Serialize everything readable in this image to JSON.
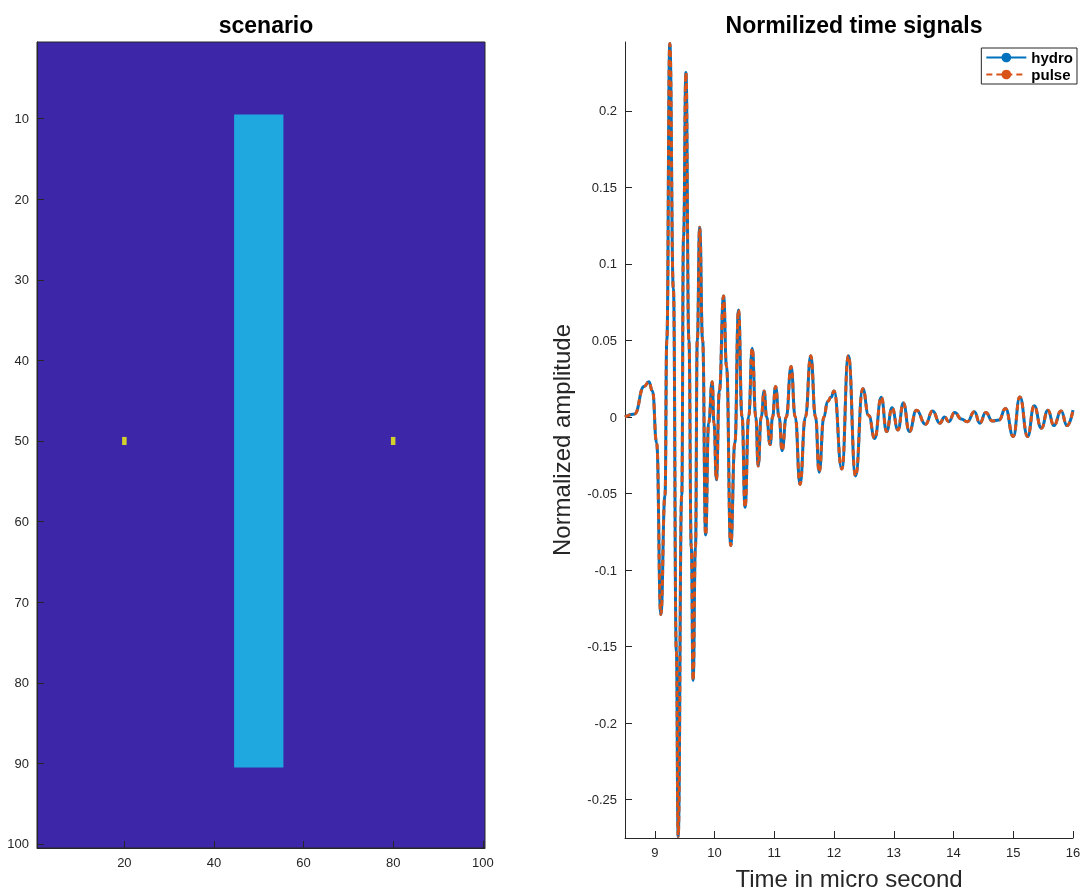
{
  "chart_data": [
    {
      "type": "bar",
      "title": "scenario",
      "xlim": [
        0.5,
        100.5
      ],
      "ylim": [
        100.5,
        0.5
      ],
      "xticks": [
        20,
        40,
        60,
        80,
        100
      ],
      "yticks": [
        10,
        20,
        30,
        40,
        50,
        60,
        70,
        80,
        90,
        100
      ],
      "marker": "square",
      "grid": false,
      "series": [
        {
          "type": "bar",
          "color": "#1fa8df",
          "x": [
            50
          ],
          "base": [
            9.5
          ],
          "values": [
            81
          ]
        },
        {
          "type": "scatter",
          "color": "#f9fb0e",
          "x": [
            20,
            80
          ],
          "values": [
            50,
            50
          ]
        }
      ]
    },
    {
      "type": "line",
      "title": "Normilized time signals",
      "xlabel": "Time in micro second",
      "ylabel": "Normalized amplitude",
      "xlim": [
        8.5,
        16
      ],
      "ylim": [
        -0.275,
        0.245
      ],
      "xticks": [
        9,
        10,
        11,
        12,
        13,
        14,
        15,
        16
      ],
      "yticks": [
        -0.25,
        -0.2,
        -0.15,
        -0.1,
        -0.05,
        0,
        0.05,
        0.1,
        0.15,
        0.2
      ],
      "grid": false,
      "legend": "top right",
      "marker": "none",
      "x": [
        8.5,
        8.66,
        8.82,
        8.9,
        8.96,
        9.03,
        9.1,
        9.17,
        9.2,
        9.25,
        9.31,
        9.36,
        9.39,
        9.45,
        9.48,
        9.52,
        9.57,
        9.61,
        9.64,
        9.68,
        9.71,
        9.75,
        9.8,
        9.85,
        9.9,
        9.96,
        9.99,
        10.03,
        10.08,
        10.15,
        10.2,
        10.27,
        10.34,
        10.4,
        10.46,
        10.51,
        10.57,
        10.63,
        10.69,
        10.73,
        10.78,
        10.83,
        10.87,
        10.93,
        10.97,
        11.02,
        11.08,
        11.13,
        11.2,
        11.28,
        11.35,
        11.43,
        11.52,
        11.61,
        11.69,
        11.75,
        11.83,
        11.89,
        11.95,
        12.0,
        12.13,
        12.24,
        12.36,
        12.48,
        12.58,
        12.68,
        12.79,
        12.88,
        12.97,
        13.07,
        13.16,
        13.26,
        13.38,
        13.53,
        13.65,
        13.77,
        13.85,
        13.92,
        14.02,
        14.13,
        14.23,
        14.35,
        14.44,
        14.54,
        14.65,
        14.76,
        14.87,
        15.0,
        15.11,
        15.24,
        15.35,
        15.47,
        15.58,
        15.68,
        15.8,
        15.9,
        16
      ],
      "series": [
        {
          "name": "hydro",
          "color": "#0072bd",
          "line_style": "solid",
          "values": [
            0,
            0.002,
            0.02,
            0.023,
            0.017,
            -0.017,
            -0.129,
            -0.051,
            0.05,
            0.244,
            0.084,
            -0.153,
            -0.274,
            -0.051,
            0.118,
            0.225,
            0.05,
            -0.085,
            -0.172,
            -0.085,
            0.05,
            0.124,
            0.05,
            -0.077,
            -0.004,
            0.023,
            -0.004,
            -0.041,
            0.017,
            0.079,
            0.033,
            -0.084,
            -0.017,
            0.07,
            0,
            -0.059,
            0,
            0.045,
            0,
            -0.032,
            0,
            0.017,
            0,
            -0.018,
            0,
            0.02,
            0,
            -0.022,
            0,
            0.033,
            0,
            -0.044,
            0,
            0.04,
            0,
            -0.036,
            0,
            0.01,
            0.013,
            0.017,
            -0.034,
            0.04,
            -0.0385,
            0.0185,
            0.001,
            -0.014,
            0.013,
            -0.0095,
            0.006,
            -0.0084,
            0.0092,
            -0.0095,
            0.0045,
            -0.0047,
            0.004,
            -0.004,
            0,
            -0.003,
            0.003,
            -0.0013,
            -0.003,
            0.0034,
            -0.004,
            0.003,
            -0.0026,
            -0.002,
            0.0056,
            -0.0127,
            0.0131,
            -0.0127,
            0.0073,
            -0.0073,
            0.0045,
            -0.0056,
            0.0039,
            -0.0056,
            0.0045
          ]
        },
        {
          "name": "pulse",
          "color": "#d95319",
          "line_style": "dashed",
          "values": [
            0,
            0.002,
            0.02,
            0.023,
            0.017,
            -0.017,
            -0.129,
            -0.051,
            0.05,
            0.244,
            0.084,
            -0.153,
            -0.274,
            -0.051,
            0.118,
            0.225,
            0.05,
            -0.085,
            -0.172,
            -0.085,
            0.05,
            0.124,
            0.05,
            -0.077,
            -0.004,
            0.023,
            -0.004,
            -0.041,
            0.017,
            0.079,
            0.033,
            -0.084,
            -0.017,
            0.07,
            0,
            -0.059,
            0,
            0.045,
            0,
            -0.032,
            0,
            0.017,
            0,
            -0.018,
            0,
            0.02,
            0,
            -0.022,
            0,
            0.033,
            0,
            -0.044,
            0,
            0.04,
            0,
            -0.036,
            0,
            0.01,
            0.013,
            0.017,
            -0.034,
            0.04,
            -0.0385,
            0.0185,
            0.001,
            -0.014,
            0.013,
            -0.0095,
            0.006,
            -0.0084,
            0.0092,
            -0.0095,
            0.0045,
            -0.0047,
            0.004,
            -0.004,
            0,
            -0.003,
            0.003,
            -0.0013,
            -0.003,
            0.0034,
            -0.004,
            0.003,
            -0.0026,
            -0.002,
            0.0056,
            -0.0127,
            0.0131,
            -0.0127,
            0.0073,
            -0.0073,
            0.0045,
            -0.0056,
            0.0039,
            -0.0056,
            0.0045
          ]
        }
      ]
    }
  ]
}
